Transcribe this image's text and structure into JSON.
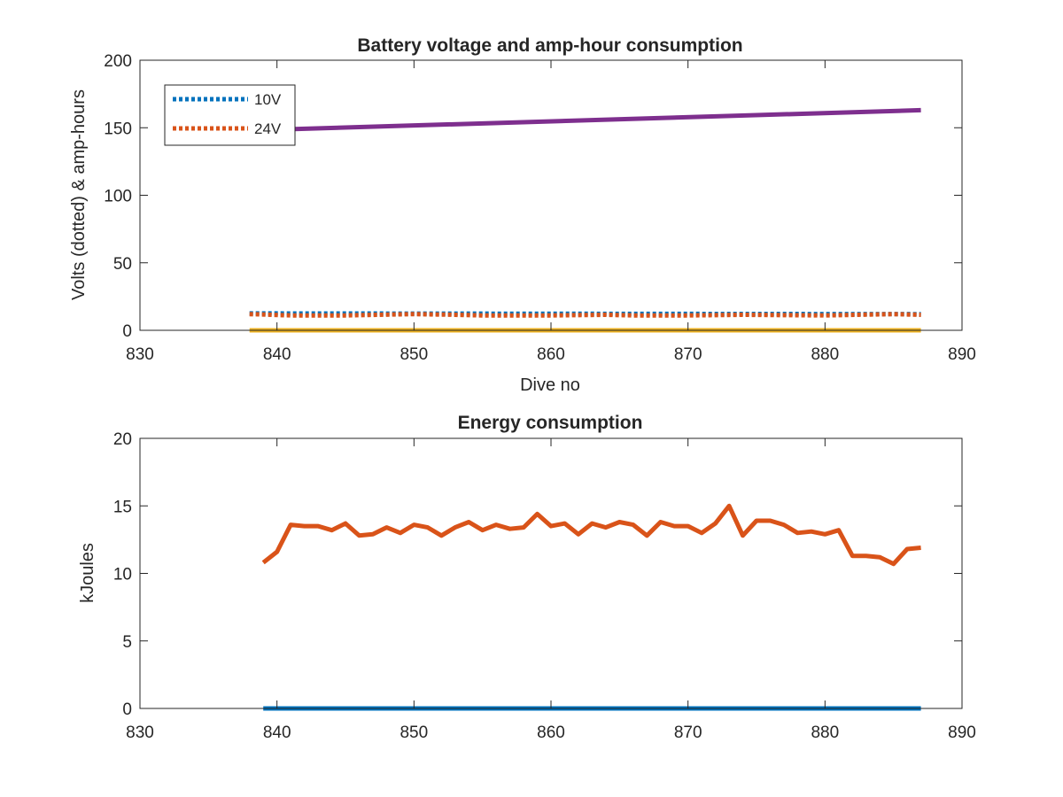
{
  "chart_data": [
    {
      "type": "line",
      "title": "Battery voltage and amp-hour consumption",
      "xlabel": "Dive no",
      "ylabel": "Volts (dotted) & amp-hours",
      "xlim": [
        830,
        890
      ],
      "ylim": [
        0,
        200
      ],
      "xticks": [
        830,
        840,
        850,
        860,
        870,
        880,
        890
      ],
      "yticks": [
        0,
        50,
        100,
        150,
        200
      ],
      "grid": false,
      "legend_position": "top-left",
      "series": [
        {
          "name": "10V",
          "style": "dotted",
          "color": "#0072bd",
          "x": [
            838,
            887
          ],
          "y": [
            12.5,
            12.0
          ]
        },
        {
          "name": "24V",
          "style": "dotted",
          "color": "#d95319",
          "x": [
            838,
            841,
            845,
            850,
            853,
            855,
            860,
            864,
            866,
            870,
            874,
            880,
            885,
            887
          ],
          "y": [
            12,
            11,
            11,
            12,
            11.5,
            11,
            11,
            11.5,
            11,
            11,
            11.5,
            11,
            12,
            11.5
          ]
        },
        {
          "style": "solid",
          "color": "#edb120",
          "x": [
            838,
            887
          ],
          "y": [
            0,
            0
          ]
        },
        {
          "style": "solid",
          "color": "#7e2f8e",
          "x": [
            838,
            887
          ],
          "y": [
            148,
            163
          ]
        }
      ]
    },
    {
      "type": "line",
      "title": "Energy consumption",
      "xlabel": "",
      "ylabel": "kJoules",
      "xlim": [
        830,
        890
      ],
      "ylim": [
        0,
        20
      ],
      "xticks": [
        830,
        840,
        850,
        860,
        870,
        880,
        890
      ],
      "yticks": [
        0,
        5,
        10,
        15,
        20
      ],
      "grid": false,
      "series": [
        {
          "style": "solid",
          "color": "#0072bd",
          "x": [
            839,
            887
          ],
          "y": [
            0,
            0
          ]
        },
        {
          "style": "solid",
          "color": "#d95319",
          "x": [
            839,
            840,
            841,
            842,
            843,
            844,
            845,
            846,
            847,
            848,
            849,
            850,
            851,
            852,
            853,
            854,
            855,
            856,
            857,
            858,
            859,
            860,
            861,
            862,
            863,
            864,
            865,
            866,
            867,
            868,
            869,
            870,
            871,
            872,
            873,
            874,
            875,
            876,
            877,
            878,
            879,
            880,
            881,
            882,
            883,
            884,
            885,
            886,
            887
          ],
          "y": [
            10.8,
            11.6,
            13.6,
            13.5,
            13.5,
            13.2,
            13.7,
            12.8,
            12.9,
            13.4,
            13.0,
            13.6,
            13.4,
            12.8,
            13.4,
            13.8,
            13.2,
            13.6,
            13.3,
            13.4,
            14.4,
            13.5,
            13.7,
            12.9,
            13.7,
            13.4,
            13.8,
            13.6,
            12.8,
            13.8,
            13.5,
            13.5,
            13.0,
            13.7,
            15.0,
            12.8,
            13.9,
            13.9,
            13.6,
            13.0,
            13.1,
            12.9,
            13.2,
            11.3,
            11.3,
            11.2,
            10.7,
            11.8,
            11.9
          ]
        }
      ]
    }
  ]
}
